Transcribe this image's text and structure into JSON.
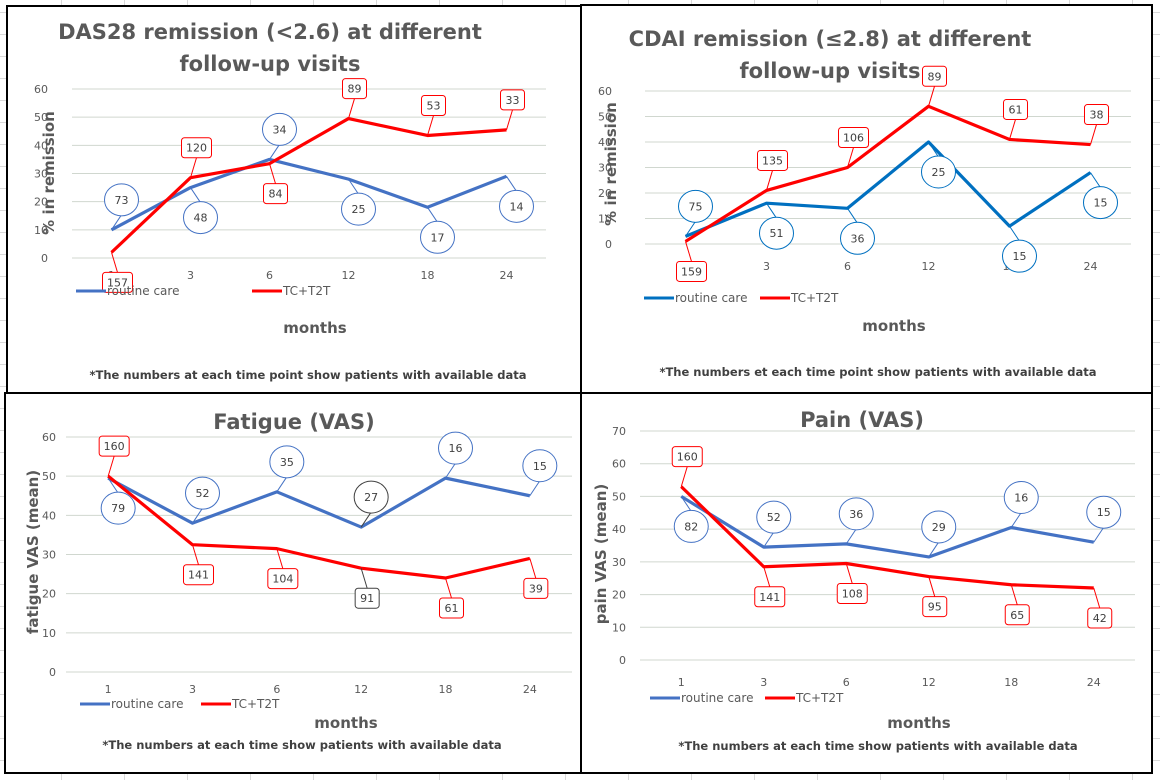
{
  "chart_data": [
    {
      "type": "line",
      "title": [
        "DAS28 remission (<2.6) at different",
        "follow-up visits"
      ],
      "xlabel": "months",
      "ylabel": "% in remission",
      "categories": [
        "1",
        "3",
        "6",
        "12",
        "18",
        "24"
      ],
      "ylim": [
        0,
        60
      ],
      "yticks": [
        0,
        10,
        20,
        30,
        40,
        50,
        60
      ],
      "grid": true,
      "legend": "bottom-left",
      "note": "*The numbers at each time point show patients with available data",
      "series": [
        {
          "name": "routine care",
          "color": "#4472C4",
          "values": [
            10,
            25,
            35,
            28,
            18,
            29
          ],
          "n_labels": [
            "73",
            "48",
            "34",
            "25",
            "17",
            "14"
          ]
        },
        {
          "name": "TC+T2T",
          "color": "#FF0000",
          "values": [
            2,
            28.5,
            33.5,
            49.5,
            43.5,
            45.5
          ],
          "n_labels": [
            "157",
            "120",
            "84",
            "89",
            "53",
            "33"
          ]
        }
      ]
    },
    {
      "type": "line",
      "title": [
        "CDAI remission (≤2.8) at different",
        "follow-up visits"
      ],
      "xlabel": "months",
      "ylabel": "% in remission",
      "categories": [
        "1",
        "3",
        "6",
        "12",
        "18",
        "24"
      ],
      "ylim": [
        0,
        60
      ],
      "yticks": [
        0,
        10,
        20,
        30,
        40,
        50,
        60
      ],
      "grid": true,
      "legend": "bottom-left",
      "note": "*The numbers et each time point show patients with available data",
      "series": [
        {
          "name": "routine care",
          "color": "#0070C0",
          "values": [
            3,
            16,
            14,
            40,
            7,
            28
          ],
          "n_labels": [
            "75",
            "51",
            "36",
            "25",
            "15",
            "15"
          ]
        },
        {
          "name": "TC+T2T",
          "color": "#FF0000",
          "values": [
            1,
            21,
            30,
            54,
            41,
            39
          ],
          "n_labels": [
            "159",
            "135",
            "106",
            "89",
            "61",
            "38"
          ]
        }
      ]
    },
    {
      "type": "line",
      "title": [
        "Fatigue (VAS)"
      ],
      "xlabel": "months",
      "ylabel": "fatigue VAS (mean)",
      "categories": [
        "1",
        "3",
        "6",
        "12",
        "18",
        "24"
      ],
      "ylim": [
        0,
        60
      ],
      "yticks": [
        0,
        10,
        20,
        30,
        40,
        50,
        60
      ],
      "grid": true,
      "legend": "bottom-left",
      "note": "*The numbers at each time show patients with available data",
      "series": [
        {
          "name": "routine care",
          "color": "#4472C4",
          "values": [
            49.5,
            38,
            46,
            37,
            49.5,
            45
          ],
          "n_labels": [
            "79",
            "52",
            "35",
            "27",
            "16",
            "15"
          ]
        },
        {
          "name": "TC+T2T",
          "color": "#FF0000",
          "values": [
            50,
            32.5,
            31.5,
            26.5,
            24,
            29
          ],
          "n_labels": [
            "160",
            "141",
            "104",
            "91",
            "61",
            "39"
          ]
        }
      ]
    },
    {
      "type": "line",
      "title": [
        "Pain (VAS)"
      ],
      "xlabel": "months",
      "ylabel": "pain  VAS (mean)",
      "categories": [
        "1",
        "3",
        "6",
        "12",
        "18",
        "24"
      ],
      "ylim": [
        0,
        70
      ],
      "yticks": [
        0,
        10,
        20,
        30,
        40,
        50,
        60,
        70
      ],
      "grid": true,
      "legend": "bottom-left",
      "note": "*The numbers at each time show patients with available data",
      "series": [
        {
          "name": "routine care",
          "color": "#4472C4",
          "values": [
            50,
            34.5,
            35.5,
            31.5,
            40.5,
            36
          ],
          "n_labels": [
            "82",
            "52",
            "36",
            "29",
            "16",
            "15"
          ]
        },
        {
          "name": "TC+T2T",
          "color": "#FF0000",
          "values": [
            53,
            28.5,
            29.5,
            25.5,
            23,
            22
          ],
          "n_labels": [
            "160",
            "141",
            "108",
            "95",
            "65",
            "42"
          ]
        }
      ]
    }
  ]
}
